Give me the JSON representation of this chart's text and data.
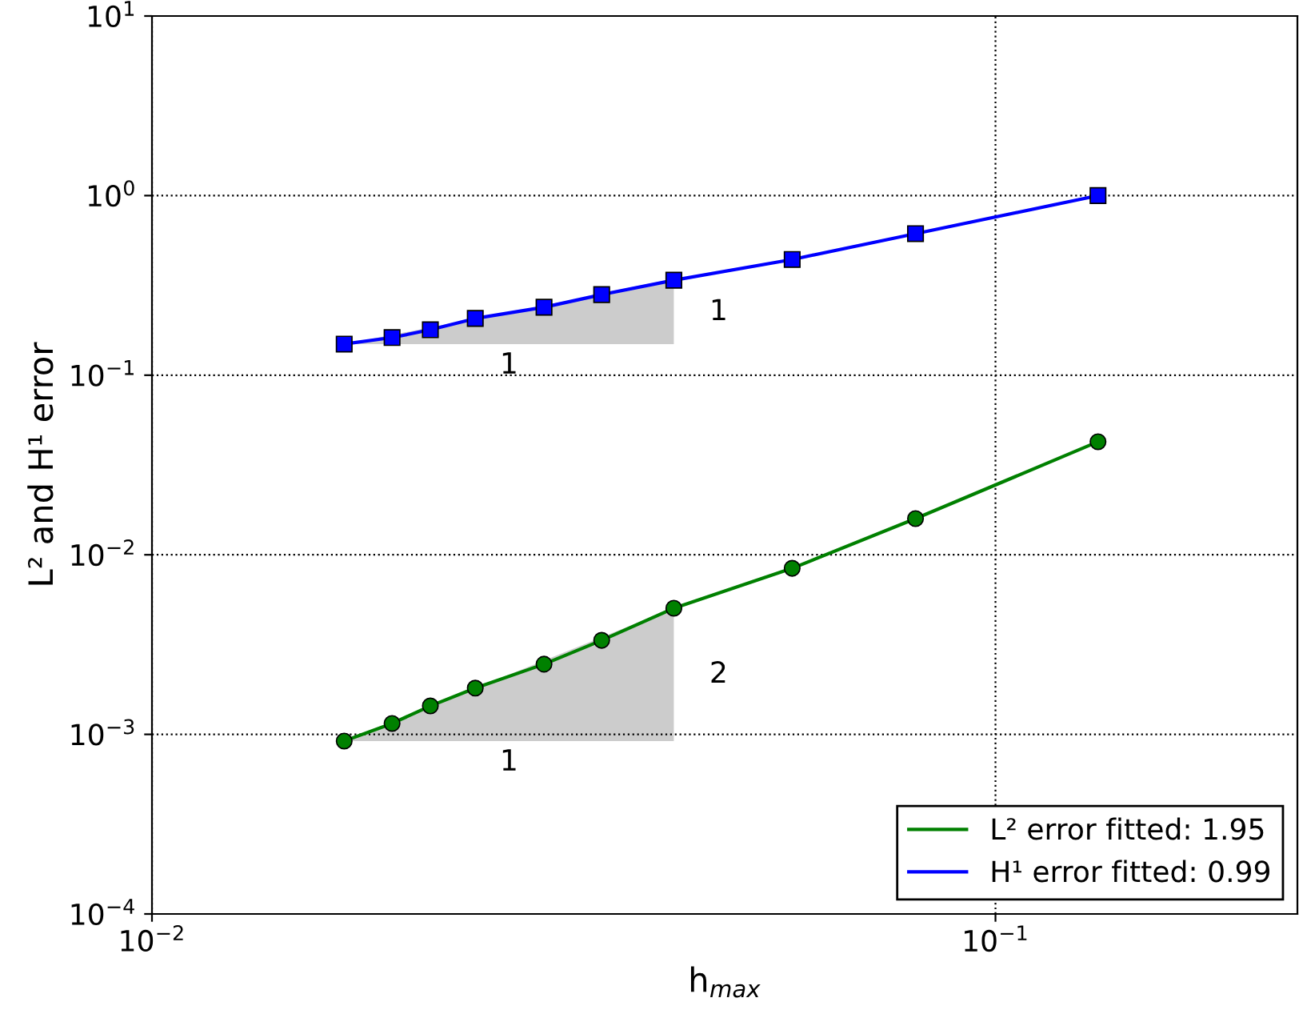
{
  "chart_data": {
    "type": "line",
    "xlabel": "h$_{max}$",
    "ylabel": "L² and H¹ error",
    "log": "xy",
    "grid": true,
    "legend": "bottom right",
    "line_style": "solid",
    "xlim": [
      0.01,
      0.228
    ],
    "ylim": [
      0.0001,
      10
    ],
    "xticks": [
      {
        "value": 0.01,
        "label": "10$^{−2}$"
      },
      {
        "value": 0.1,
        "label": "10$^{−1}$"
      }
    ],
    "yticks": [
      {
        "value": 0.0001,
        "label": "10$^{−4}$"
      },
      {
        "value": 0.001,
        "label": "10$^{−3}$"
      },
      {
        "value": 0.01,
        "label": "10$^{−2}$"
      },
      {
        "value": 0.1,
        "label": "10$^{−1}$"
      },
      {
        "value": 1,
        "label": "10$^{0}$"
      },
      {
        "value": 10,
        "label": "10$^{1}$"
      }
    ],
    "series": [
      {
        "name": "L² error fitted: 1.95",
        "color": "#008000",
        "marker": "circle",
        "x": [
          0.0169,
          0.01926,
          0.02138,
          0.02417,
          0.02916,
          0.03413,
          0.04156,
          0.05741,
          0.08039,
          0.1323
        ],
        "values": [
          0.000918,
          0.00115,
          0.00144,
          0.00181,
          0.00246,
          0.00334,
          0.00504,
          0.00841,
          0.0159,
          0.0426
        ]
      },
      {
        "name": "H¹ error fitted: 0.99",
        "color": "#0000ff",
        "marker": "square",
        "x": [
          0.0169,
          0.01926,
          0.02138,
          0.02417,
          0.02916,
          0.03413,
          0.04156,
          0.05741,
          0.08039,
          0.1323
        ],
        "values": [
          0.149,
          0.162,
          0.179,
          0.207,
          0.239,
          0.281,
          0.338,
          0.441,
          0.614,
          1.0
        ]
      }
    ],
    "annotations": [
      "1",
      "1",
      "2",
      "1"
    ]
  }
}
